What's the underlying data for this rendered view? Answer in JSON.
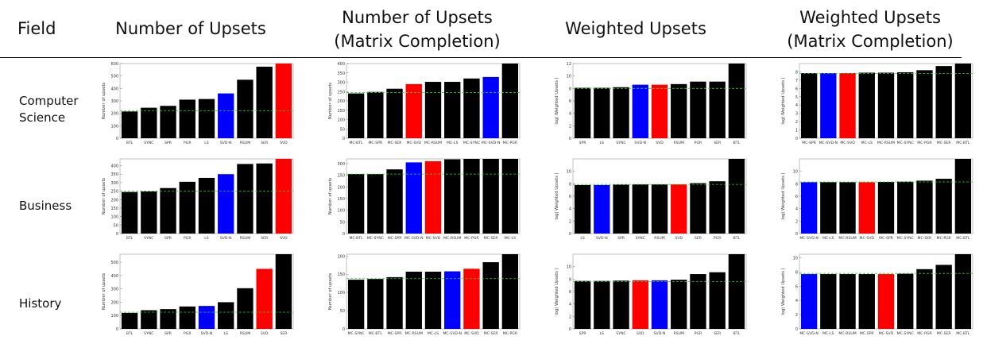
{
  "headers": {
    "field": "Field",
    "col1": "Number of Upsets",
    "col2_line1": "Number of Upsets",
    "col2_line2": "(Matrix Completion)",
    "col3": "Weighted Upsets",
    "col4_line1": "Weighted Upsets",
    "col4_line2": "(Matrix Completion)"
  },
  "rows": {
    "cs_line1": "Computer",
    "cs_line2": "Science",
    "business": "Business",
    "history": "History"
  },
  "colors": {
    "black": "#000000",
    "blue": "#0000ff",
    "red": "#ff0000",
    "baseline": "#33cc33"
  },
  "chart_data": [
    {
      "type": "bar",
      "field": "Computer Science",
      "ylabel": "Number of upsets",
      "ylim": [
        0,
        600
      ],
      "yticks": [
        0,
        100,
        200,
        300,
        400,
        500,
        600
      ],
      "baseline": 220,
      "categories": [
        "BTL",
        "SYNC",
        "SPR",
        "PGR",
        "LS",
        "SVD-N",
        "RSUM",
        "SER",
        "SVD"
      ],
      "values": [
        215,
        245,
        260,
        310,
        315,
        360,
        470,
        575,
        600
      ],
      "colors": [
        "black",
        "black",
        "black",
        "black",
        "black",
        "blue",
        "black",
        "black",
        "red"
      ]
    },
    {
      "type": "bar",
      "field": "Computer Science",
      "ylabel": "Number of upsets",
      "ylim": [
        0,
        400
      ],
      "yticks": [
        0,
        50,
        100,
        150,
        200,
        250,
        300,
        350,
        400
      ],
      "baseline": 245,
      "categories": [
        "MC-BTL",
        "MC-SPR",
        "MC-SER",
        "MC-SVD",
        "MC-RSUM",
        "MC-LS",
        "MC-SYNC",
        "MC-SVD-N",
        "MC-PGR"
      ],
      "values": [
        240,
        248,
        265,
        290,
        302,
        302,
        320,
        328,
        410
      ],
      "colors": [
        "black",
        "black",
        "black",
        "red",
        "black",
        "black",
        "black",
        "blue",
        "black"
      ]
    },
    {
      "type": "bar",
      "field": "Computer Science",
      "ylabel": "log( Weighted Upsets )",
      "ylim": [
        0,
        12
      ],
      "yticks": [
        0,
        2,
        4,
        6,
        8,
        10,
        12
      ],
      "baseline": 8,
      "categories": [
        "SPR",
        "LS",
        "SYNC",
        "SVD-N",
        "SVD",
        "RSUM",
        "PGR",
        "SER",
        "BTL"
      ],
      "values": [
        8.1,
        8.1,
        8.2,
        8.6,
        8.6,
        8.7,
        9.1,
        9.1,
        12.3
      ],
      "colors": [
        "black",
        "black",
        "black",
        "blue",
        "red",
        "black",
        "black",
        "black",
        "black"
      ]
    },
    {
      "type": "bar",
      "field": "Computer Science",
      "ylabel": "log( Weighted Upsets )",
      "ylim": [
        0,
        9
      ],
      "yticks": [
        0,
        1,
        2,
        3,
        4,
        5,
        6,
        7,
        8
      ],
      "baseline": 7.8,
      "categories": [
        "MC-SPR",
        "MC-SVD-N",
        "MC-SVD",
        "MC-LS",
        "MC-RSUM",
        "MC-SYNC",
        "MC-PGR",
        "MC-SER",
        "MC-BTL"
      ],
      "values": [
        7.85,
        7.85,
        7.85,
        7.9,
        7.9,
        7.95,
        8.2,
        8.7,
        9.1
      ],
      "colors": [
        "black",
        "blue",
        "red",
        "black",
        "black",
        "black",
        "black",
        "black",
        "black"
      ]
    },
    {
      "type": "bar",
      "field": "Business",
      "ylabel": "Number of upsets",
      "ylim": [
        0,
        440
      ],
      "yticks": [
        0,
        50,
        100,
        150,
        200,
        250,
        300,
        350,
        400
      ],
      "baseline": 250,
      "categories": [
        "BTL",
        "SYNC",
        "SPR",
        "PGR",
        "LS",
        "SVD-N",
        "RSUM",
        "SER",
        "SVD"
      ],
      "values": [
        245,
        248,
        268,
        305,
        328,
        350,
        410,
        413,
        440
      ],
      "colors": [
        "black",
        "black",
        "black",
        "black",
        "black",
        "blue",
        "black",
        "black",
        "red"
      ]
    },
    {
      "type": "bar",
      "field": "Business",
      "ylabel": "Number of upsets",
      "ylim": [
        0,
        320
      ],
      "yticks": [
        0,
        50,
        100,
        150,
        200,
        250,
        300
      ],
      "baseline": 255,
      "categories": [
        "MC-BTL",
        "MC-SYNC",
        "MC-SPR",
        "MC-SVD-N",
        "MC-SVD",
        "MC-RSUM",
        "MC-PGR",
        "MC-SER",
        "MC-LS"
      ],
      "values": [
        255,
        255,
        275,
        305,
        310,
        318,
        320,
        320,
        320
      ],
      "colors": [
        "black",
        "black",
        "black",
        "blue",
        "red",
        "black",
        "black",
        "black",
        "black"
      ]
    },
    {
      "type": "bar",
      "field": "Business",
      "ylabel": "log( Weighted Upsets )",
      "ylim": [
        0,
        12
      ],
      "yticks": [
        0,
        2,
        4,
        6,
        8,
        10
      ],
      "baseline": 7.9,
      "categories": [
        "LS",
        "SVD-N",
        "SPR",
        "SYNC",
        "RSUM",
        "SVD",
        "SER",
        "PGR",
        "BTL"
      ],
      "values": [
        7.8,
        7.8,
        7.85,
        7.9,
        7.9,
        7.9,
        8.1,
        8.4,
        12.2
      ],
      "colors": [
        "black",
        "blue",
        "black",
        "black",
        "black",
        "red",
        "black",
        "black",
        "black"
      ]
    },
    {
      "type": "bar",
      "field": "Business",
      "ylabel": "log( Weighted Upsets )",
      "ylim": [
        0,
        12
      ],
      "yticks": [
        0,
        2,
        4,
        6,
        8,
        10
      ],
      "baseline": 8.3,
      "categories": [
        "MC-SVD-N",
        "MC-LS",
        "MC-RSUM",
        "MC-SVD",
        "MC-SPR",
        "MC-SYNC",
        "MC-SER",
        "MC-PGR",
        "MC-BTL"
      ],
      "values": [
        8.25,
        8.25,
        8.25,
        8.25,
        8.3,
        8.35,
        8.5,
        8.8,
        12.2
      ],
      "colors": [
        "blue",
        "black",
        "black",
        "red",
        "black",
        "black",
        "black",
        "black",
        "black"
      ]
    },
    {
      "type": "bar",
      "field": "History",
      "ylabel": "Number of upsets",
      "ylim": [
        0,
        560
      ],
      "yticks": [
        0,
        100,
        200,
        300,
        400,
        500
      ],
      "baseline": 125,
      "categories": [
        "BTL",
        "SYNC",
        "SPR",
        "PGR",
        "SVD-N",
        "LS",
        "RSUM",
        "SVD",
        "SER"
      ],
      "values": [
        120,
        140,
        148,
        168,
        172,
        200,
        305,
        450,
        560
      ],
      "colors": [
        "black",
        "black",
        "black",
        "black",
        "blue",
        "black",
        "black",
        "red",
        "black"
      ]
    },
    {
      "type": "bar",
      "field": "History",
      "ylabel": "Number of upsets",
      "ylim": [
        0,
        205
      ],
      "yticks": [
        0,
        50,
        100,
        150,
        200
      ],
      "baseline": 138,
      "categories": [
        "MC-SYNC",
        "MC-BTL",
        "MC-SPR",
        "MC-RSUM",
        "MC-LS",
        "MC-SVD-N",
        "MC-SVD",
        "MC-SER",
        "MC-PGR"
      ],
      "values": [
        135,
        137,
        142,
        157,
        157,
        158,
        165,
        183,
        205
      ],
      "colors": [
        "black",
        "black",
        "black",
        "black",
        "black",
        "blue",
        "red",
        "black",
        "black"
      ]
    },
    {
      "type": "bar",
      "field": "History",
      "ylabel": "log( Weighted Upsets )",
      "ylim": [
        0,
        12
      ],
      "yticks": [
        0,
        2,
        4,
        6,
        8,
        10
      ],
      "baseline": 7.6,
      "categories": [
        "SPR",
        "LS",
        "SYNC",
        "SVD",
        "SVD-N",
        "RSUM",
        "PGR",
        "SER",
        "BTL"
      ],
      "values": [
        7.7,
        7.7,
        7.75,
        7.8,
        7.8,
        7.9,
        8.8,
        9.1,
        12.2
      ],
      "colors": [
        "black",
        "black",
        "black",
        "red",
        "blue",
        "black",
        "black",
        "black",
        "black"
      ]
    },
    {
      "type": "bar",
      "field": "History",
      "ylabel": "log( Weighted Upsets )",
      "ylim": [
        0,
        10.5
      ],
      "yticks": [
        0,
        2,
        4,
        6,
        8,
        10
      ],
      "baseline": 7.8,
      "categories": [
        "MC-SVD-N",
        "MC-LS",
        "MC-RSUM",
        "MC-SPR",
        "MC-SVD",
        "MC-SYNC",
        "MC-PGR",
        "MC-SER",
        "MC-BTL"
      ],
      "values": [
        7.7,
        7.7,
        7.7,
        7.7,
        7.7,
        7.75,
        8.4,
        9.0,
        10.5
      ],
      "colors": [
        "blue",
        "black",
        "black",
        "black",
        "red",
        "black",
        "black",
        "black",
        "black"
      ]
    }
  ]
}
